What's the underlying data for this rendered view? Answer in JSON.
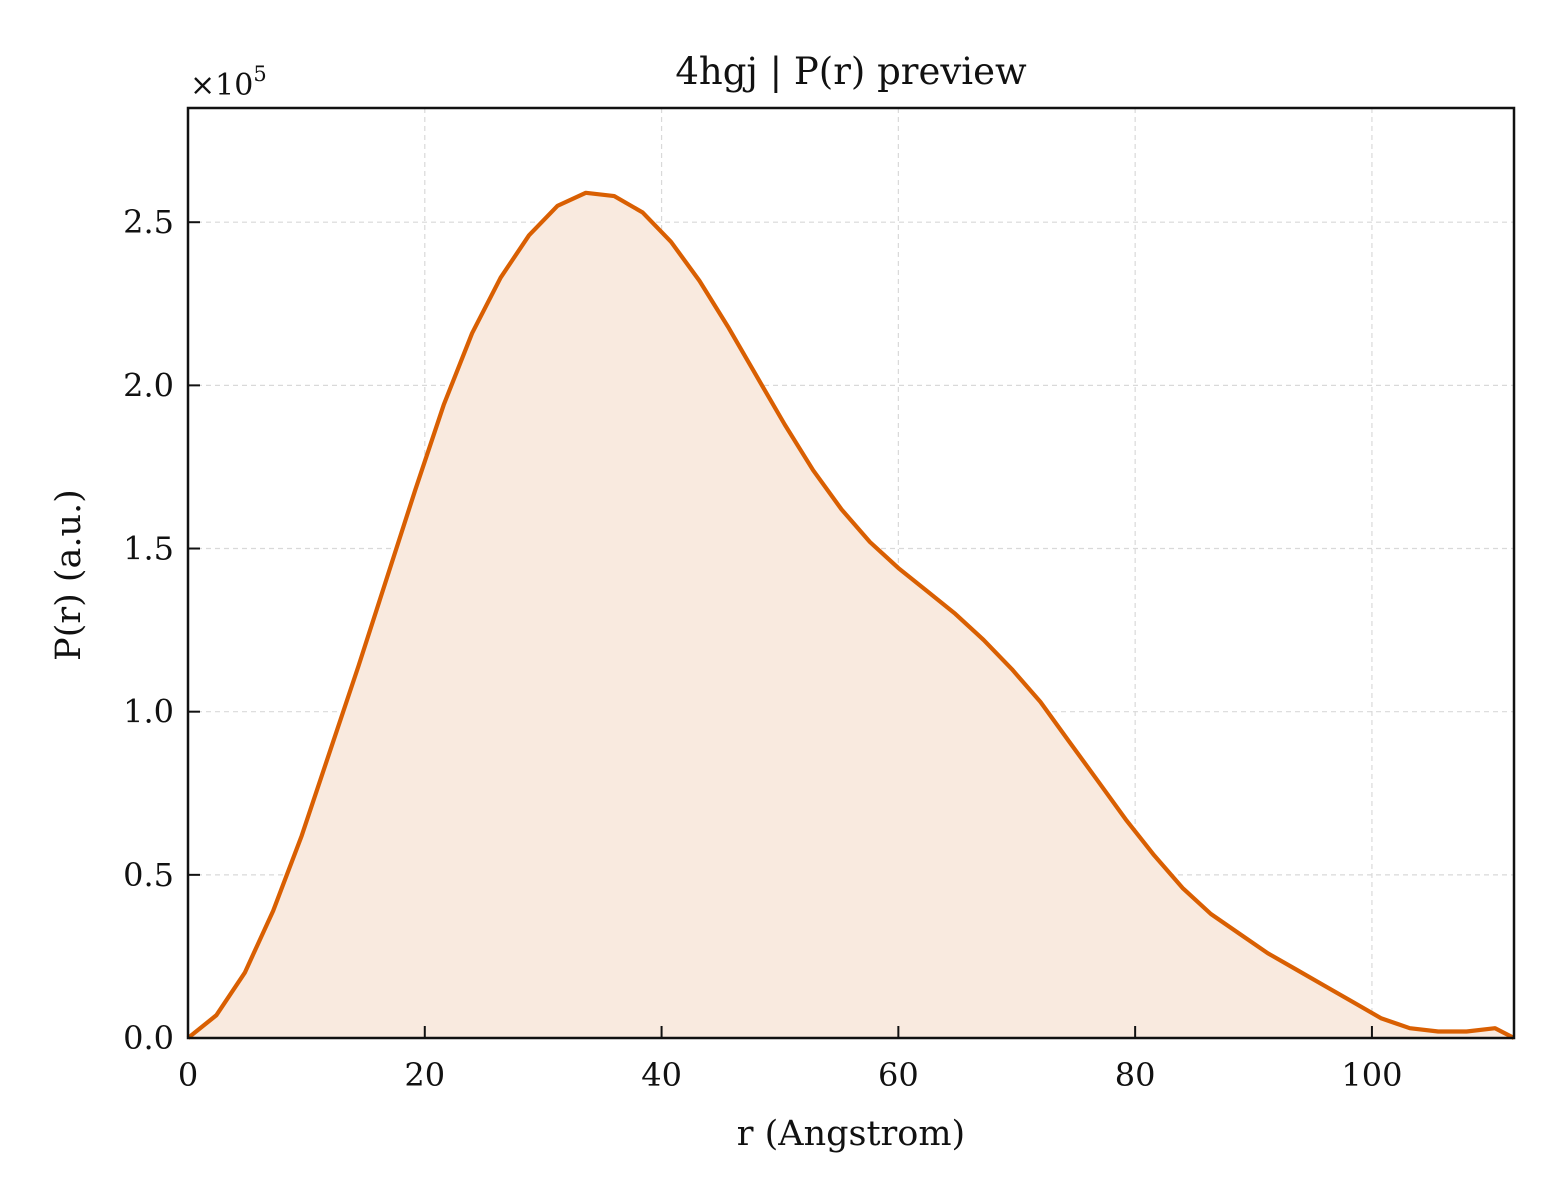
{
  "chart_data": {
    "type": "area",
    "title": "4hgj | P(r) preview",
    "xlabel": "r (Angstrom)",
    "ylabel": "P(r) (a.u.)",
    "y_multiplier": "×10",
    "y_multiplier_exponent": "5",
    "xlim": [
      0,
      112
    ],
    "ylim": [
      0,
      2.85
    ],
    "y_scale_factor": 100000,
    "x_ticks": [
      0,
      20,
      40,
      60,
      80,
      100
    ],
    "x_tick_labels": [
      "0",
      "20",
      "40",
      "60",
      "80",
      "100"
    ],
    "y_ticks": [
      0,
      0.5,
      1.0,
      1.5,
      2.0,
      2.5
    ],
    "y_tick_labels": [
      "0.0",
      "0.5",
      "1.0",
      "1.5",
      "2.0",
      "2.5"
    ],
    "grid": true,
    "colors": {
      "line": "#d95f02",
      "fill": "#f9eadf",
      "grid": "#d9d9d9",
      "axis": "#111111"
    },
    "series": [
      {
        "x": [
          0,
          2.4,
          4.8,
          7.2,
          9.6,
          12.0,
          14.4,
          16.8,
          19.2,
          21.6,
          24.0,
          26.4,
          28.8,
          31.2,
          33.6,
          36.0,
          38.4,
          40.8,
          43.2,
          45.6,
          48.0,
          50.4,
          52.8,
          55.2,
          57.6,
          60.0,
          62.4,
          64.8,
          67.2,
          69.6,
          72.0,
          74.4,
          76.8,
          79.2,
          81.6,
          84.0,
          86.4,
          88.8,
          91.2,
          93.6,
          96.0,
          98.4,
          100.8,
          103.2,
          105.6,
          108.0,
          110.4,
          112.0
        ],
        "y": [
          0.0,
          0.07,
          0.2,
          0.39,
          0.62,
          0.88,
          1.14,
          1.41,
          1.68,
          1.94,
          2.16,
          2.33,
          2.46,
          2.55,
          2.59,
          2.58,
          2.53,
          2.44,
          2.32,
          2.18,
          2.03,
          1.88,
          1.74,
          1.62,
          1.52,
          1.44,
          1.37,
          1.3,
          1.22,
          1.13,
          1.03,
          0.91,
          0.79,
          0.67,
          0.56,
          0.46,
          0.38,
          0.32,
          0.26,
          0.21,
          0.16,
          0.11,
          0.06,
          0.03,
          0.02,
          0.02,
          0.03,
          0.0
        ]
      }
    ]
  }
}
